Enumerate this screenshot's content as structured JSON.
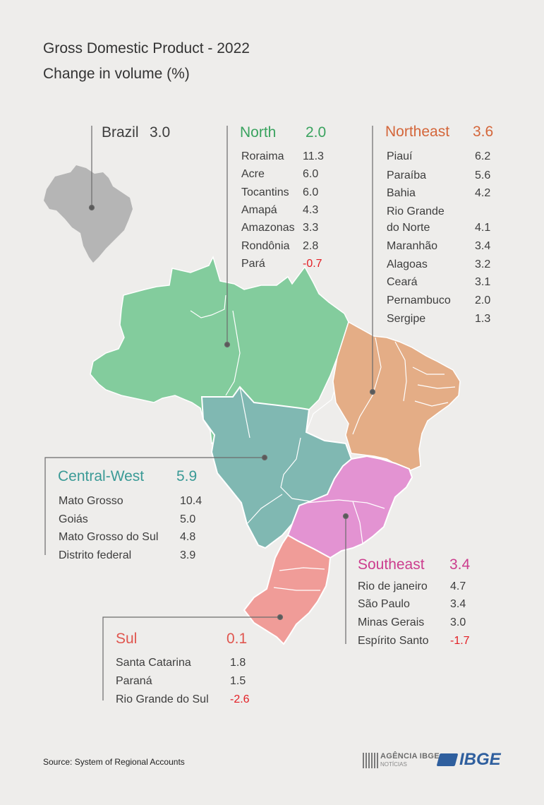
{
  "header": {
    "title": "Gross Domestic Product - 2022",
    "subtitle": "Change in volume (%)"
  },
  "colors": {
    "north": "#83cc9d",
    "northeast": "#e4ad86",
    "central_west": "#80b8b2",
    "southeast": "#e393d2",
    "sul": "#f09c98",
    "brazil": "#b5b5b5",
    "north_label": "#3aa35f",
    "northeast_label": "#d4663a",
    "central_west_label": "#3a9a96",
    "southeast_label": "#cc3d8e",
    "sul_label": "#e0564f",
    "negative": "#e31e24"
  },
  "brazil": {
    "name": "Brazil",
    "value": "3.0"
  },
  "regions": {
    "north": {
      "name": "North",
      "value": "2.0",
      "states": [
        {
          "name": "Roraima",
          "value": "11.3"
        },
        {
          "name": "Acre",
          "value": "6.0"
        },
        {
          "name": "Tocantins",
          "value": "6.0"
        },
        {
          "name": "Amapá",
          "value": "4.3"
        },
        {
          "name": "Amazonas",
          "value": "3.3"
        },
        {
          "name": "Rondônia",
          "value": "2.8"
        },
        {
          "name": "Pará",
          "value": "-0.7"
        }
      ]
    },
    "northeast": {
      "name": "Northeast",
      "value": "3.6",
      "states": [
        {
          "name": "Piauí",
          "value": "6.2"
        },
        {
          "name": "Paraíba",
          "value": "5.6"
        },
        {
          "name": "Bahia",
          "value": "4.2"
        },
        {
          "name": "Rio Grande",
          "name2": "do Norte",
          "value": "4.1"
        },
        {
          "name": "Maranhão",
          "value": "3.4"
        },
        {
          "name": "Alagoas",
          "value": "3.2"
        },
        {
          "name": "Ceará",
          "value": "3.1"
        },
        {
          "name": "Pernambuco",
          "value": "2.0"
        },
        {
          "name": "Sergipe",
          "value": "1.3"
        }
      ]
    },
    "central_west": {
      "name": "Central-West",
      "value": "5.9",
      "states": [
        {
          "name": "Mato Grosso",
          "value": "10.4"
        },
        {
          "name": "Goiás",
          "value": "5.0"
        },
        {
          "name": "Mato Grosso do Sul",
          "value": "4.8"
        },
        {
          "name": "Distrito federal",
          "value": "3.9"
        }
      ]
    },
    "southeast": {
      "name": "Southeast",
      "value": "3.4",
      "states": [
        {
          "name": "Rio de janeiro",
          "value": "4.7"
        },
        {
          "name": "São Paulo",
          "value": "3.4"
        },
        {
          "name": "Minas Gerais",
          "value": "3.0"
        },
        {
          "name": "Espírito Santo",
          "value": "-1.7"
        }
      ]
    },
    "sul": {
      "name": "Sul",
      "value": "0.1",
      "states": [
        {
          "name": "Santa Catarina",
          "value": "1.8"
        },
        {
          "name": "Paraná",
          "value": "1.5"
        },
        {
          "name": "Rio Grande do Sul",
          "value": "-2.6"
        }
      ]
    }
  },
  "footer": {
    "source": "Source: System of Regional Accounts",
    "agencia_line1": "AGÊNCIA IBGE",
    "agencia_line2": "NOTÍCIAS",
    "ibge": "IBGE"
  }
}
